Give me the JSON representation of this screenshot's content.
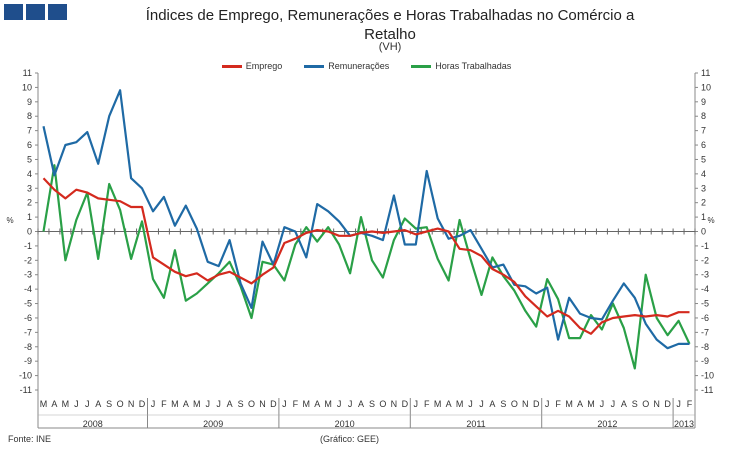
{
  "header": {
    "title_line1": "Índices de Emprego,  Remunerações e Horas Trabalhadas  no Comércio a",
    "title_line2": "Retalho",
    "subtitle": "(VH)"
  },
  "colors": {
    "logo": "#1f4e8c",
    "emprego": "#d42a1e",
    "remuneracoes": "#1f6aa5",
    "horas": "#2aa047"
  },
  "footer": {
    "source": "Fonte: INE",
    "credit": "(Gráfico: GEE)"
  },
  "chart_data": {
    "type": "line",
    "title": "Índices de Emprego,  Remunerações e Horas Trabalhadas  no Comércio a Retalho",
    "subtitle": "(VH)",
    "ylabel": "%",
    "ylim": [
      -11,
      11
    ],
    "yticks": [
      11,
      10,
      9,
      8,
      7,
      6,
      5,
      4,
      3,
      2,
      1,
      0,
      -1,
      -2,
      -3,
      -4,
      -5,
      -6,
      -7,
      -8,
      -9,
      -10,
      -11
    ],
    "grid": false,
    "legend_position": "top",
    "months": [
      "M",
      "A",
      "M",
      "J",
      "J",
      "A",
      "S",
      "O",
      "N",
      "D",
      "J",
      "F",
      "M",
      "A",
      "M",
      "J",
      "J",
      "A",
      "S",
      "O",
      "N",
      "D",
      "J",
      "F",
      "M",
      "A",
      "M",
      "J",
      "J",
      "A",
      "S",
      "O",
      "N",
      "D",
      "J",
      "F",
      "M",
      "A",
      "M",
      "J",
      "J",
      "A",
      "S",
      "O",
      "N",
      "D",
      "J",
      "F",
      "M",
      "A",
      "M",
      "J",
      "J",
      "A",
      "S",
      "O",
      "N",
      "D",
      "J",
      "F"
    ],
    "years": [
      {
        "label": "2008",
        "start": 0,
        "end": 9
      },
      {
        "label": "2009",
        "start": 10,
        "end": 21
      },
      {
        "label": "2010",
        "start": 22,
        "end": 33
      },
      {
        "label": "2011",
        "start": 34,
        "end": 45
      },
      {
        "label": "2012",
        "start": 46,
        "end": 57
      },
      {
        "label": "2013",
        "start": 58,
        "end": 59
      }
    ],
    "series": [
      {
        "name": "Emprego",
        "color": "#d42a1e",
        "values": [
          3.7,
          2.9,
          2.3,
          2.9,
          2.7,
          2.3,
          2.2,
          2.1,
          1.7,
          1.7,
          -1.8,
          -2.3,
          -2.8,
          -3.1,
          -2.9,
          -3.4,
          -3.0,
          -2.8,
          -3.2,
          -3.6,
          -3.0,
          -2.5,
          -0.8,
          -0.5,
          -0.1,
          0.1,
          0.0,
          -0.3,
          -0.3,
          -0.1,
          0.0,
          -0.1,
          0.0,
          0.1,
          -0.2,
          0.0,
          0.2,
          0.0,
          -1.2,
          -1.3,
          -1.7,
          -2.6,
          -3.0,
          -3.5,
          -4.5,
          -5.2,
          -5.9,
          -5.5,
          -5.9,
          -6.7,
          -7.1,
          -6.3,
          -6.0,
          -5.9,
          -5.8,
          -5.9,
          -5.8,
          -5.9,
          -5.6,
          -5.6
        ]
      },
      {
        "name": "Remunerações",
        "color": "#1f6aa5",
        "values": [
          7.3,
          3.9,
          6.0,
          6.2,
          6.9,
          4.7,
          8.0,
          9.8,
          3.7,
          3.0,
          1.4,
          2.4,
          0.4,
          1.8,
          0.2,
          -2.1,
          -2.4,
          -0.6,
          -3.6,
          -5.3,
          -0.7,
          -2.3,
          0.3,
          0.0,
          -1.8,
          1.9,
          1.4,
          0.7,
          -0.3,
          -0.1,
          -0.3,
          -0.6,
          2.5,
          -0.9,
          -0.9,
          4.2,
          0.9,
          -0.5,
          -0.3,
          0.1,
          -1.2,
          -2.5,
          -2.3,
          -3.7,
          -3.8,
          -4.3,
          -3.9,
          -7.5,
          -4.6,
          -5.7,
          -6.0,
          -6.1,
          -4.8,
          -3.6,
          -4.6,
          -6.4,
          -7.5,
          -8.1,
          -7.8,
          -7.8
        ]
      },
      {
        "name": "Horas Trabalhadas",
        "color": "#2aa047",
        "values": [
          0.0,
          4.6,
          -2.0,
          0.8,
          2.7,
          -1.9,
          3.3,
          1.5,
          -1.9,
          0.7,
          -3.3,
          -4.6,
          -1.3,
          -4.8,
          -4.3,
          -3.6,
          -2.9,
          -2.1,
          -3.8,
          -6.0,
          -2.1,
          -2.3,
          -3.4,
          -0.9,
          0.3,
          -0.7,
          0.3,
          -0.9,
          -2.9,
          1.0,
          -2.0,
          -3.2,
          -0.6,
          0.9,
          0.2,
          0.3,
          -1.9,
          -3.4,
          0.8,
          -1.9,
          -4.4,
          -1.8,
          -3.1,
          -4.1,
          -5.5,
          -6.6,
          -3.3,
          -4.7,
          -7.4,
          -7.4,
          -5.8,
          -6.8,
          -5.0,
          -6.7,
          -9.5,
          -3.0,
          -6.0,
          -7.2,
          -6.2,
          -7.8
        ]
      }
    ]
  }
}
